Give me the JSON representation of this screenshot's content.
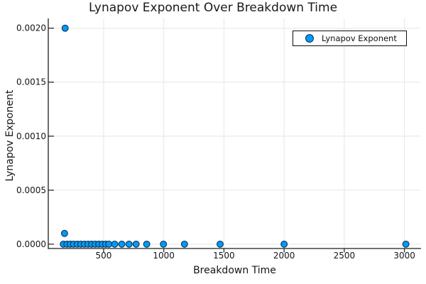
{
  "chart_data": {
    "type": "scatter",
    "title": "Lynapov Exponent Over Breakdown Time",
    "xlabel": "Breakdown Time",
    "ylabel": "Lynapov Exponent",
    "xlim": [
      40,
      3135
    ],
    "ylim": [
      -4e-05,
      0.00209
    ],
    "xticks": [
      500,
      1000,
      1500,
      2000,
      2500,
      3000
    ],
    "xtick_labels": [
      "500",
      "1000",
      "1500",
      "2000",
      "2500",
      "3000"
    ],
    "yticks": [
      0.0,
      0.0005,
      0.001,
      0.0015,
      0.002
    ],
    "ytick_labels": [
      "0.0000",
      "0.0005",
      "0.0010",
      "0.0015",
      "0.0020"
    ],
    "grid": true,
    "legend_position": "top-right",
    "series": [
      {
        "name": "Lynapov Exponent",
        "marker": "circle",
        "points": [
          [
            180,
            0.002
          ],
          [
            175,
            0.0001
          ],
          [
            165,
            0
          ],
          [
            195,
            0
          ],
          [
            222,
            0
          ],
          [
            250,
            0
          ],
          [
            281,
            0
          ],
          [
            310,
            0
          ],
          [
            340,
            0
          ],
          [
            370,
            0
          ],
          [
            400,
            0
          ],
          [
            430,
            0
          ],
          [
            459,
            0
          ],
          [
            488,
            0
          ],
          [
            517,
            0
          ],
          [
            543,
            0
          ],
          [
            592,
            0
          ],
          [
            651,
            0
          ],
          [
            711,
            0
          ],
          [
            770,
            0
          ],
          [
            858,
            0
          ],
          [
            997,
            0
          ],
          [
            1172,
            0
          ],
          [
            1468,
            0
          ],
          [
            2000,
            0
          ],
          [
            3012,
            0
          ]
        ]
      }
    ]
  },
  "colors": {
    "marker_fill": "#009af9",
    "marker_stroke": "#0b3450",
    "grid": "#e6e6e6",
    "axis": "#1c1c1c",
    "text": "#151515",
    "legend_border": "#0d0d0d",
    "background": "#ffffff"
  }
}
